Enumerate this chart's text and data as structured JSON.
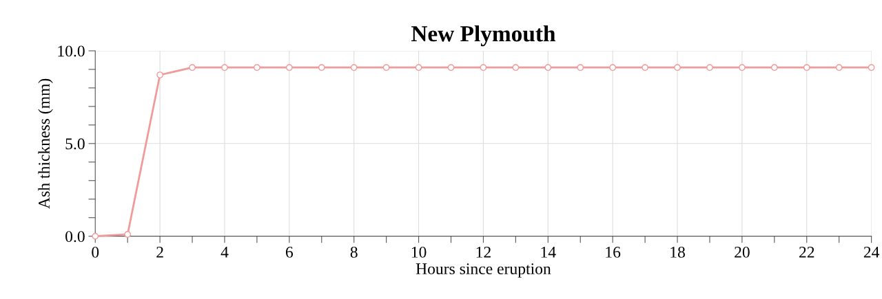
{
  "chart_data": {
    "type": "line",
    "title": "New Plymouth",
    "xlabel": "Hours since eruption",
    "ylabel": "Ash thickness (mm)",
    "x": [
      0,
      1,
      2,
      3,
      4,
      5,
      6,
      7,
      8,
      9,
      10,
      11,
      12,
      13,
      14,
      15,
      16,
      17,
      18,
      19,
      20,
      21,
      22,
      23,
      24
    ],
    "series": [
      {
        "color": "#f09a9a",
        "values": [
          0,
          0.1,
          8.7,
          9.1,
          9.1,
          9.1,
          9.1,
          9.1,
          9.1,
          9.1,
          9.1,
          9.1,
          9.1,
          9.1,
          9.1,
          9.1,
          9.1,
          9.1,
          9.1,
          9.1,
          9.1,
          9.1,
          9.1,
          9.1,
          9.1
        ]
      }
    ],
    "xlim": [
      0,
      24
    ],
    "ylim": [
      0,
      10
    ],
    "xticks": [
      0,
      {
        "value": 1,
        "label": null
      },
      2,
      {
        "value": 3,
        "label": null
      },
      4,
      {
        "value": 5,
        "label": null
      },
      6,
      {
        "value": 7,
        "label": null
      },
      8,
      {
        "value": 9,
        "label": null
      },
      10,
      {
        "value": 11,
        "label": null
      },
      12,
      {
        "value": 13,
        "label": null
      },
      14,
      {
        "value": 15,
        "label": null
      },
      16,
      {
        "value": 17,
        "label": null
      },
      18,
      {
        "value": 19,
        "label": null
      },
      20,
      {
        "value": 21,
        "label": null
      },
      22,
      {
        "value": 23,
        "label": null
      },
      24
    ],
    "yticks": [
      {
        "value": 0,
        "label": "0.0"
      },
      {
        "value": 1,
        "label": null
      },
      {
        "value": 2,
        "label": null
      },
      {
        "value": 3,
        "label": null
      },
      {
        "value": 4,
        "label": null
      },
      {
        "value": 5,
        "label": "5.0"
      },
      {
        "value": 6,
        "label": null
      },
      {
        "value": 7,
        "label": null
      },
      {
        "value": 8,
        "label": null
      },
      {
        "value": 9,
        "label": null
      },
      {
        "value": 10,
        "label": "10.0"
      }
    ],
    "grid": true,
    "marker": "circle",
    "line_style": "solid"
  }
}
